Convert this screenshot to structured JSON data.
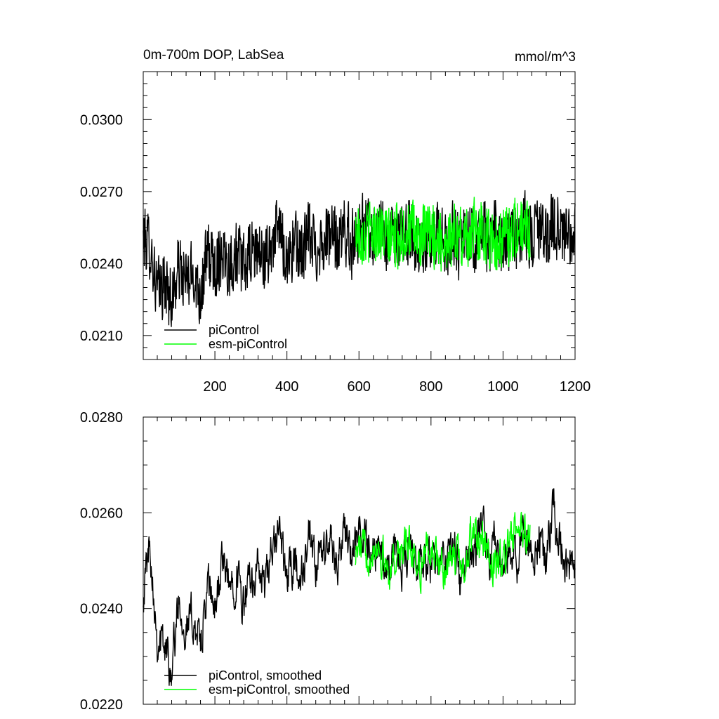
{
  "figure": {
    "title_left": "0m-700m DOP, LabSea",
    "title_right": "mmol/m^3"
  },
  "chart_data": [
    {
      "type": "line",
      "title": "0m-700m DOP, LabSea",
      "units": "mmol/m^3",
      "xlim": [
        1,
        1200
      ],
      "ylim": [
        0.02,
        0.032
      ],
      "x_ticks": [
        200,
        400,
        600,
        800,
        1000,
        1200
      ],
      "x_tick_labels": [
        "200",
        "400",
        "600",
        "800",
        "1000",
        "1200"
      ],
      "y_ticks": [
        0.021,
        0.024,
        0.027,
        0.03
      ],
      "y_tick_labels": [
        "0.0210",
        "0.0240",
        "0.0270",
        "0.0300"
      ],
      "legend": {
        "placement": "bottom-left",
        "entries": [
          "piControl",
          "esm-piControl"
        ]
      },
      "series": [
        {
          "name": "piControl",
          "color": "#000000",
          "x_range": [
            1,
            1200
          ],
          "knots": [
            [
              1,
              0.025
            ],
            [
              20,
              0.0248
            ],
            [
              40,
              0.0228
            ],
            [
              60,
              0.0232
            ],
            [
              80,
              0.0225
            ],
            [
              100,
              0.0238
            ],
            [
              120,
              0.0232
            ],
            [
              140,
              0.0236
            ],
            [
              160,
              0.0228
            ],
            [
              180,
              0.0244
            ],
            [
              200,
              0.0238
            ],
            [
              220,
              0.0246
            ],
            [
              240,
              0.024
            ],
            [
              260,
              0.0244
            ],
            [
              280,
              0.0238
            ],
            [
              300,
              0.0244
            ],
            [
              320,
              0.0246
            ],
            [
              340,
              0.024
            ],
            [
              360,
              0.025
            ],
            [
              380,
              0.0254
            ],
            [
              400,
              0.0242
            ],
            [
              420,
              0.0248
            ],
            [
              440,
              0.0244
            ],
            [
              460,
              0.0252
            ],
            [
              480,
              0.0246
            ],
            [
              500,
              0.025
            ],
            [
              520,
              0.0252
            ],
            [
              540,
              0.0248
            ],
            [
              560,
              0.0254
            ],
            [
              580,
              0.0248
            ],
            [
              600,
              0.0256
            ],
            [
              620,
              0.0254
            ],
            [
              640,
              0.0252
            ],
            [
              660,
              0.0256
            ],
            [
              680,
              0.0248
            ],
            [
              700,
              0.0252
            ],
            [
              720,
              0.025
            ],
            [
              740,
              0.0254
            ],
            [
              760,
              0.0248
            ],
            [
              780,
              0.025
            ],
            [
              800,
              0.0246
            ],
            [
              820,
              0.0252
            ],
            [
              840,
              0.0248
            ],
            [
              860,
              0.0254
            ],
            [
              880,
              0.0246
            ],
            [
              900,
              0.0252
            ],
            [
              920,
              0.025
            ],
            [
              940,
              0.0256
            ],
            [
              960,
              0.0248
            ],
            [
              980,
              0.0254
            ],
            [
              1000,
              0.0246
            ],
            [
              1020,
              0.0252
            ],
            [
              1040,
              0.025
            ],
            [
              1060,
              0.0256
            ],
            [
              1080,
              0.025
            ],
            [
              1100,
              0.0254
            ],
            [
              1120,
              0.025
            ],
            [
              1140,
              0.0258
            ],
            [
              1160,
              0.0252
            ],
            [
              1180,
              0.025
            ],
            [
              1200,
              0.025
            ]
          ],
          "noise_amplitude": 0.0016
        },
        {
          "name": "esm-piControl",
          "color": "#00ff00",
          "x_range": [
            590,
            1075
          ],
          "knots": [
            [
              590,
              0.0254
            ],
            [
              620,
              0.0252
            ],
            [
              650,
              0.0255
            ],
            [
              680,
              0.025
            ],
            [
              710,
              0.0252
            ],
            [
              740,
              0.0254
            ],
            [
              770,
              0.025
            ],
            [
              800,
              0.0253
            ],
            [
              830,
              0.0249
            ],
            [
              860,
              0.0252
            ],
            [
              890,
              0.025
            ],
            [
              920,
              0.0254
            ],
            [
              950,
              0.0253
            ],
            [
              980,
              0.0249
            ],
            [
              1010,
              0.0252
            ],
            [
              1040,
              0.0255
            ],
            [
              1075,
              0.0254
            ]
          ],
          "noise_amplitude": 0.0015
        }
      ]
    },
    {
      "type": "line",
      "xlim": [
        1,
        1200
      ],
      "ylim": [
        0.022,
        0.028
      ],
      "x_ticks": [
        200,
        400,
        600,
        800,
        1000,
        1200
      ],
      "y_ticks": [
        0.022,
        0.024,
        0.026,
        0.028
      ],
      "y_tick_labels": [
        "0.0220",
        "0.0240",
        "0.0260",
        "0.0280"
      ],
      "legend": {
        "placement": "bottom-left",
        "entries": [
          "piControl, smoothed",
          "esm-piControl, smoothed"
        ]
      },
      "series": [
        {
          "name": "piControl, smoothed",
          "color": "#000000",
          "x_range": [
            1,
            1200
          ],
          "knots": [
            [
              1,
              0.0244
            ],
            [
              20,
              0.0254
            ],
            [
              40,
              0.0234
            ],
            [
              60,
              0.0232
            ],
            [
              80,
              0.0228
            ],
            [
              100,
              0.0242
            ],
            [
              120,
              0.0236
            ],
            [
              140,
              0.0238
            ],
            [
              160,
              0.0232
            ],
            [
              180,
              0.0244
            ],
            [
              200,
              0.024
            ],
            [
              220,
              0.025
            ],
            [
              240,
              0.0244
            ],
            [
              260,
              0.0248
            ],
            [
              280,
              0.024
            ],
            [
              300,
              0.0246
            ],
            [
              320,
              0.0248
            ],
            [
              340,
              0.0244
            ],
            [
              360,
              0.0252
            ],
            [
              380,
              0.0256
            ],
            [
              400,
              0.0246
            ],
            [
              420,
              0.025
            ],
            [
              440,
              0.0246
            ],
            [
              460,
              0.0254
            ],
            [
              480,
              0.0248
            ],
            [
              500,
              0.0252
            ],
            [
              520,
              0.0254
            ],
            [
              540,
              0.025
            ],
            [
              560,
              0.0256
            ],
            [
              580,
              0.025
            ],
            [
              600,
              0.0256
            ],
            [
              620,
              0.0254
            ],
            [
              640,
              0.0252
            ],
            [
              660,
              0.0254
            ],
            [
              680,
              0.0248
            ],
            [
              700,
              0.0252
            ],
            [
              720,
              0.025
            ],
            [
              740,
              0.0254
            ],
            [
              760,
              0.0248
            ],
            [
              780,
              0.025
            ],
            [
              800,
              0.0248
            ],
            [
              820,
              0.0252
            ],
            [
              840,
              0.0248
            ],
            [
              860,
              0.0254
            ],
            [
              880,
              0.0246
            ],
            [
              900,
              0.0252
            ],
            [
              920,
              0.025
            ],
            [
              940,
              0.0258
            ],
            [
              960,
              0.0248
            ],
            [
              980,
              0.0254
            ],
            [
              1000,
              0.0246
            ],
            [
              1020,
              0.0252
            ],
            [
              1040,
              0.025
            ],
            [
              1060,
              0.0256
            ],
            [
              1080,
              0.0252
            ],
            [
              1100,
              0.0256
            ],
            [
              1120,
              0.025
            ],
            [
              1140,
              0.026
            ],
            [
              1160,
              0.0252
            ],
            [
              1180,
              0.025
            ],
            [
              1200,
              0.0246
            ]
          ],
          "noise_amplitude": 0.0009
        },
        {
          "name": "esm-piControl, smoothed",
          "color": "#00ff00",
          "x_range": [
            590,
            1075
          ],
          "knots": [
            [
              590,
              0.0252
            ],
            [
              620,
              0.0252
            ],
            [
              650,
              0.0254
            ],
            [
              680,
              0.0248
            ],
            [
              710,
              0.0252
            ],
            [
              740,
              0.0253
            ],
            [
              770,
              0.0249
            ],
            [
              800,
              0.0253
            ],
            [
              830,
              0.0248
            ],
            [
              860,
              0.0251
            ],
            [
              890,
              0.0249
            ],
            [
              920,
              0.0256
            ],
            [
              950,
              0.0252
            ],
            [
              980,
              0.0248
            ],
            [
              1010,
              0.0252
            ],
            [
              1040,
              0.0256
            ],
            [
              1075,
              0.0256
            ]
          ],
          "noise_amplitude": 0.0008
        }
      ]
    }
  ]
}
